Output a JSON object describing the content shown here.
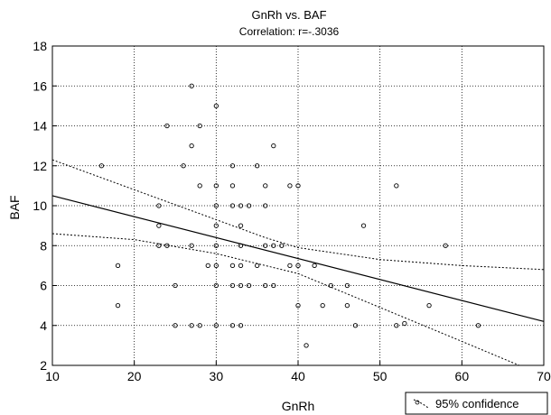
{
  "chart_data": {
    "type": "scatter",
    "title": "GnRh vs. BAF",
    "subtitle": "Correlation: r=-.3036",
    "xlabel": "GnRh",
    "ylabel": "BAF",
    "xlim": [
      10,
      70
    ],
    "ylim": [
      2,
      18
    ],
    "x_ticks": [
      10,
      20,
      30,
      40,
      50,
      60,
      70
    ],
    "y_ticks": [
      2,
      4,
      6,
      8,
      10,
      12,
      14,
      16,
      18
    ],
    "grid": true,
    "legend": {
      "label": "95% confidence",
      "position": "bottom-right"
    },
    "points": [
      {
        "x": 16,
        "y": 12
      },
      {
        "x": 18,
        "y": 7
      },
      {
        "x": 18,
        "y": 5
      },
      {
        "x": 23,
        "y": 10
      },
      {
        "x": 23,
        "y": 9
      },
      {
        "x": 23,
        "y": 8
      },
      {
        "x": 24,
        "y": 14
      },
      {
        "x": 24,
        "y": 8
      },
      {
        "x": 25,
        "y": 6
      },
      {
        "x": 25,
        "y": 4
      },
      {
        "x": 26,
        "y": 12
      },
      {
        "x": 27,
        "y": 16
      },
      {
        "x": 27,
        "y": 13
      },
      {
        "x": 27,
        "y": 8
      },
      {
        "x": 27,
        "y": 4
      },
      {
        "x": 28,
        "y": 14
      },
      {
        "x": 28,
        "y": 11
      },
      {
        "x": 28,
        "y": 4
      },
      {
        "x": 29,
        "y": 7
      },
      {
        "x": 30,
        "y": 15
      },
      {
        "x": 30,
        "y": 11
      },
      {
        "x": 30,
        "y": 10
      },
      {
        "x": 30,
        "y": 9
      },
      {
        "x": 30,
        "y": 8
      },
      {
        "x": 30,
        "y": 7
      },
      {
        "x": 30,
        "y": 6
      },
      {
        "x": 30,
        "y": 4
      },
      {
        "x": 32,
        "y": 12
      },
      {
        "x": 32,
        "y": 11
      },
      {
        "x": 32,
        "y": 10
      },
      {
        "x": 32,
        "y": 7
      },
      {
        "x": 32,
        "y": 6
      },
      {
        "x": 32,
        "y": 4
      },
      {
        "x": 33,
        "y": 10
      },
      {
        "x": 33,
        "y": 9
      },
      {
        "x": 33,
        "y": 8
      },
      {
        "x": 33,
        "y": 7
      },
      {
        "x": 33,
        "y": 6
      },
      {
        "x": 33,
        "y": 4
      },
      {
        "x": 34,
        "y": 10
      },
      {
        "x": 34,
        "y": 6
      },
      {
        "x": 35,
        "y": 12
      },
      {
        "x": 35,
        "y": 7
      },
      {
        "x": 36,
        "y": 11
      },
      {
        "x": 36,
        "y": 10
      },
      {
        "x": 36,
        "y": 8
      },
      {
        "x": 36,
        "y": 6
      },
      {
        "x": 37,
        "y": 13
      },
      {
        "x": 37,
        "y": 8
      },
      {
        "x": 37,
        "y": 6
      },
      {
        "x": 38,
        "y": 8
      },
      {
        "x": 39,
        "y": 11
      },
      {
        "x": 39,
        "y": 7
      },
      {
        "x": 40,
        "y": 11
      },
      {
        "x": 40,
        "y": 7
      },
      {
        "x": 40,
        "y": 5
      },
      {
        "x": 41,
        "y": 3
      },
      {
        "x": 42,
        "y": 7
      },
      {
        "x": 43,
        "y": 5
      },
      {
        "x": 44,
        "y": 6
      },
      {
        "x": 46,
        "y": 6
      },
      {
        "x": 46,
        "y": 5
      },
      {
        "x": 47,
        "y": 4
      },
      {
        "x": 48,
        "y": 9
      },
      {
        "x": 52,
        "y": 11
      },
      {
        "x": 52,
        "y": 4
      },
      {
        "x": 53,
        "y": 4.1
      },
      {
        "x": 56,
        "y": 5
      },
      {
        "x": 58,
        "y": 8
      },
      {
        "x": 62,
        "y": 4
      }
    ],
    "regression_line": [
      {
        "x": 10,
        "y": 10.5
      },
      {
        "x": 70,
        "y": 4.2
      }
    ],
    "confidence_upper": [
      {
        "x": 10,
        "y": 12.3
      },
      {
        "x": 20,
        "y": 10.8
      },
      {
        "x": 30,
        "y": 9.3
      },
      {
        "x": 36,
        "y": 8.4
      },
      {
        "x": 40,
        "y": 7.9
      },
      {
        "x": 50,
        "y": 7.3
      },
      {
        "x": 60,
        "y": 7.0
      },
      {
        "x": 70,
        "y": 6.8
      }
    ],
    "confidence_lower": [
      {
        "x": 10,
        "y": 8.6
      },
      {
        "x": 20,
        "y": 8.3
      },
      {
        "x": 30,
        "y": 7.6
      },
      {
        "x": 40,
        "y": 6.6
      },
      {
        "x": 50,
        "y": 4.9
      },
      {
        "x": 60,
        "y": 3.2
      },
      {
        "x": 67,
        "y": 2.0
      }
    ]
  }
}
